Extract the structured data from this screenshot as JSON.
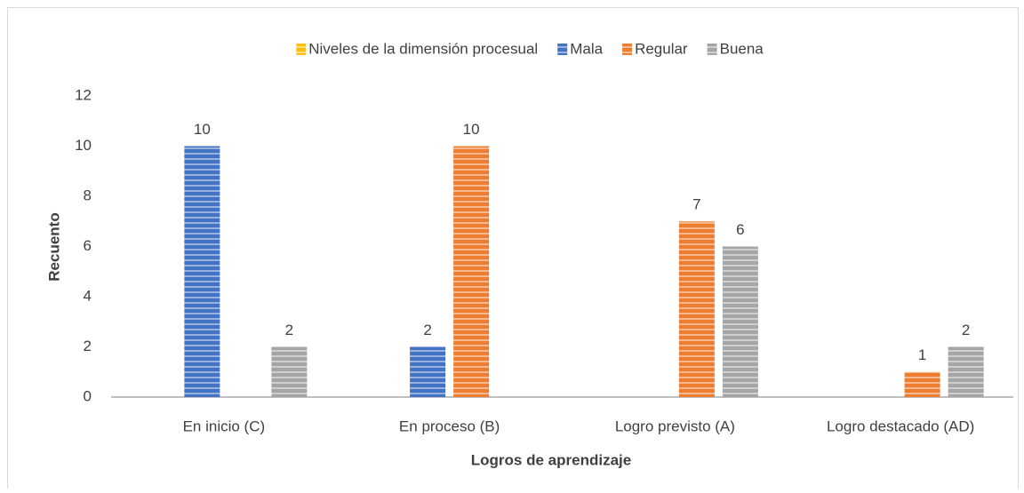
{
  "chart_data": {
    "type": "bar",
    "categories": [
      "En inicio (C)",
      "En proceso (B)",
      "Logro previsto (A)",
      "Logro destacado (AD)"
    ],
    "series": [
      {
        "name": "Niveles de la dimensión procesual",
        "color": "#ffc000",
        "values": [
          null,
          null,
          null,
          null
        ]
      },
      {
        "name": "Mala",
        "color": "#4472c4",
        "values": [
          10,
          2,
          null,
          null
        ]
      },
      {
        "name": "Regular",
        "color": "#ed7d31",
        "values": [
          null,
          10,
          7,
          1
        ]
      },
      {
        "name": "Buena",
        "color": "#a5a5a5",
        "values": [
          2,
          null,
          6,
          2
        ]
      }
    ],
    "xlabel": "Logros de aprendizaje",
    "ylabel": "Recuento",
    "ylim": [
      0,
      12
    ],
    "yticks": [
      0,
      2,
      4,
      6,
      8,
      10,
      12
    ],
    "grid": false,
    "legend": "top"
  }
}
